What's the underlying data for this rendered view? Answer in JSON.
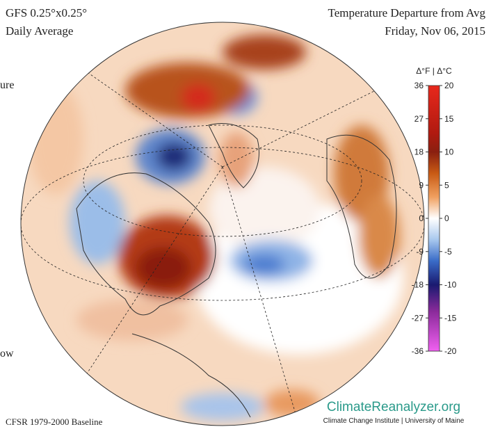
{
  "header": {
    "model": "GFS 0.25°x0.25°",
    "period": "Daily Average",
    "title": "Temperature Departure from Avg",
    "date": "Friday, Nov 06, 2015"
  },
  "side_texts": [
    "ure",
    "ow"
  ],
  "colorbar": {
    "label": "Δ°F | Δ°C",
    "flim": [
      -36,
      36
    ],
    "fticks": [
      36,
      27,
      18,
      9,
      0,
      -9,
      -18,
      -27,
      -36
    ],
    "clim": [
      -20,
      20
    ],
    "cticks": [
      20,
      15,
      10,
      5,
      0,
      -5,
      -10,
      -15,
      -20
    ]
  },
  "footer": {
    "baseline": "CFSR 1979-2000 Baseline",
    "logo": "ClimateReanalyzer.org",
    "institute": "Climate Change Institute | University of Maine"
  }
}
